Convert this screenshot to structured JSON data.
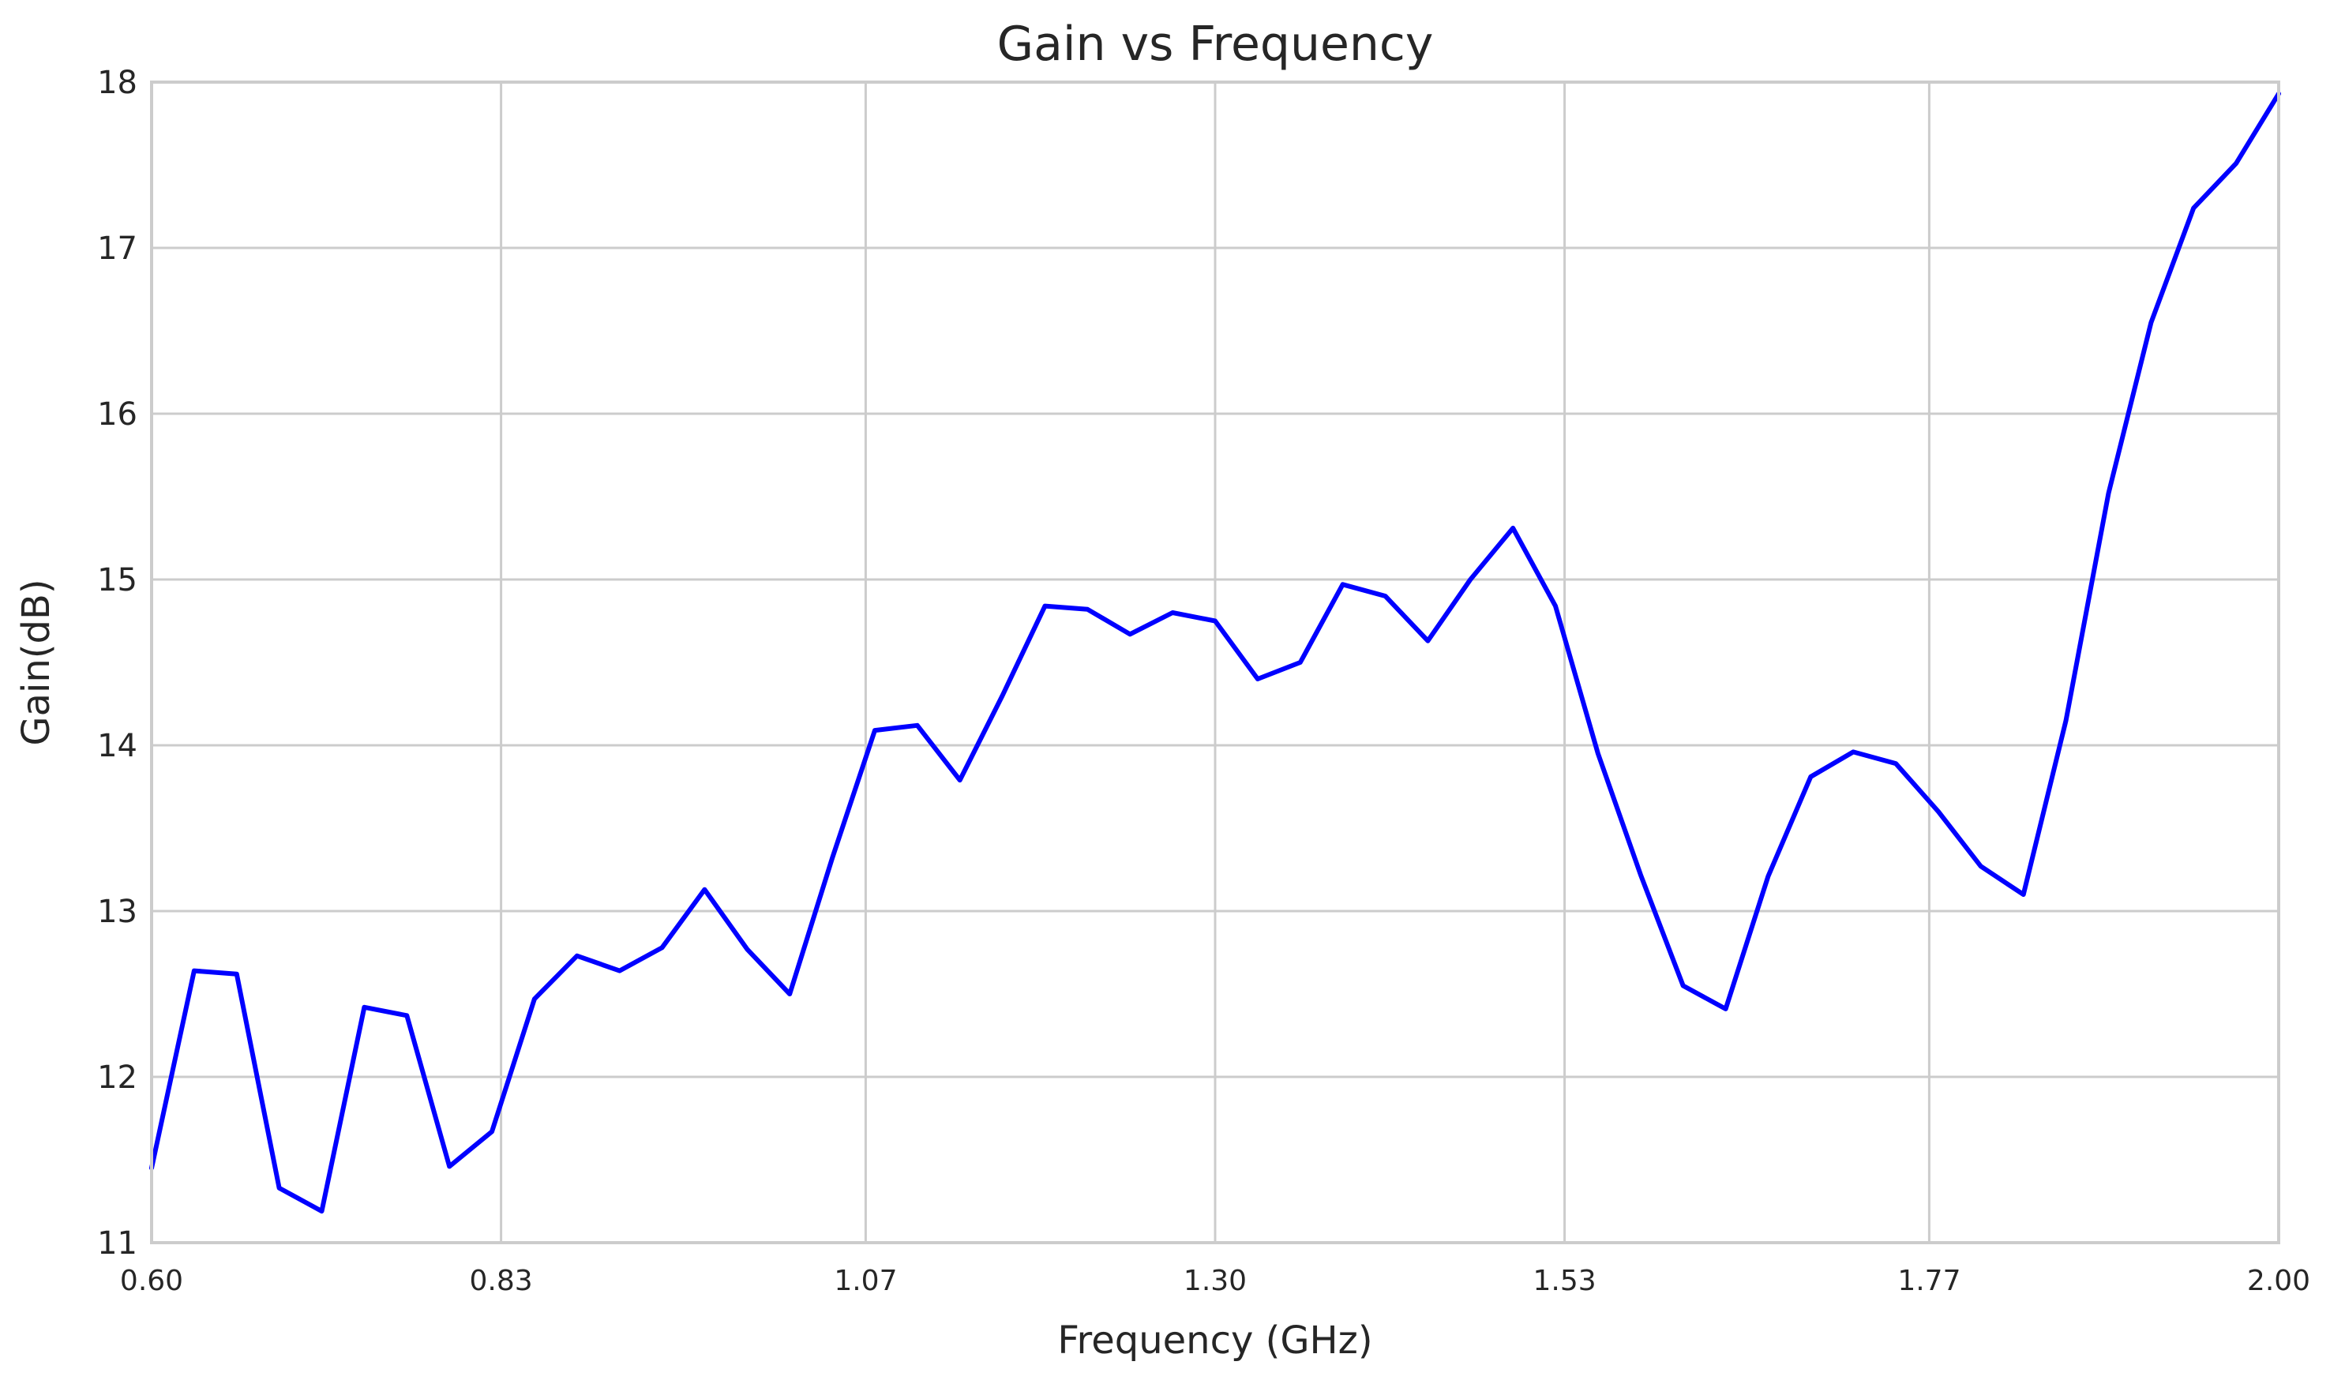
{
  "chart_data": {
    "type": "line",
    "title": "Gain vs Frequency",
    "xlabel": "Frequency (GHz)",
    "ylabel": "Gain(dB)",
    "xlim": [
      0.6,
      2.0
    ],
    "ylim": [
      11,
      18
    ],
    "x_ticks": [
      "0.60",
      "0.83",
      "1.07",
      "1.30",
      "1.53",
      "1.77",
      "2.00"
    ],
    "y_ticks": [
      "11",
      "12",
      "13",
      "14",
      "15",
      "16",
      "17",
      "18"
    ],
    "grid": true,
    "legend": "none",
    "series": [
      {
        "color": "#0000ff",
        "x": [
          0.6,
          0.628,
          0.656,
          0.684,
          0.712,
          0.74,
          0.768,
          0.796,
          0.824,
          0.852,
          0.88,
          0.908,
          0.936,
          0.964,
          0.992,
          1.02,
          1.048,
          1.076,
          1.104,
          1.132,
          1.16,
          1.188,
          1.216,
          1.244,
          1.272,
          1.3,
          1.328,
          1.356,
          1.384,
          1.412,
          1.44,
          1.468,
          1.496,
          1.524,
          1.552,
          1.58,
          1.608,
          1.636,
          1.664,
          1.692,
          1.72,
          1.748,
          1.776,
          1.804,
          1.832,
          1.86,
          1.888,
          1.916,
          1.944,
          1.972,
          2.0
        ],
        "y": [
          11.45,
          12.64,
          12.62,
          11.33,
          11.19,
          12.42,
          12.37,
          11.46,
          11.67,
          12.47,
          12.73,
          12.64,
          12.78,
          13.13,
          12.77,
          12.5,
          13.32,
          14.09,
          14.12,
          13.79,
          14.3,
          14.84,
          14.82,
          14.67,
          14.8,
          14.75,
          14.4,
          14.5,
          14.97,
          14.9,
          14.63,
          15.0,
          15.31,
          14.84,
          13.95,
          13.22,
          12.55,
          12.41,
          13.21,
          13.81,
          13.96,
          13.89,
          13.6,
          13.27,
          13.1,
          14.15,
          15.52,
          16.55,
          17.24,
          17.51,
          17.93
        ]
      }
    ]
  }
}
